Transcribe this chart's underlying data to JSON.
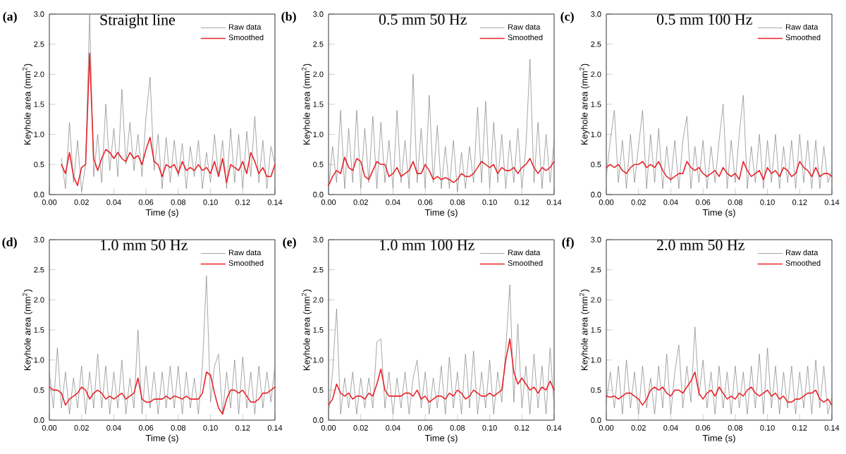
{
  "chart_data": [
    {
      "type": "line",
      "title": "Straight line",
      "annotations": [
        "(a)"
      ],
      "xlabel": "Time (s)",
      "ylabel": "Keyhole area (mm$^{2}$)",
      "legend": "top right",
      "xlim": [
        0,
        0.14
      ],
      "ylim": [
        0,
        3.0
      ],
      "xticks": [
        {
          "value": 0,
          "label": "0.00"
        },
        {
          "value": 0.02,
          "label": "0.02"
        },
        {
          "value": 0.04,
          "label": "0.04"
        },
        {
          "value": 0.06,
          "label": "0.06"
        },
        {
          "value": 0.08,
          "label": "0.08"
        },
        {
          "value": 0.1,
          "label": "0.10"
        },
        {
          "value": 0.12,
          "label": "0.12"
        },
        {
          "value": 0.14,
          "label": "0.14"
        }
      ],
      "yticks": [
        {
          "value": 0,
          "label": "0.0"
        },
        {
          "value": 0.5,
          "label": "0.5"
        },
        {
          "value": 1.0,
          "label": "1.0"
        },
        {
          "value": 1.5,
          "label": "1.5"
        },
        {
          "value": 2.0,
          "label": "2.0"
        },
        {
          "value": 2.5,
          "label": "2.5"
        },
        {
          "value": 3.0,
          "label": "3.0"
        }
      ],
      "x": [
        0.0075,
        0.01,
        0.0125,
        0.015,
        0.0175,
        0.02,
        0.0225,
        0.025,
        0.0275,
        0.03,
        0.0325,
        0.035,
        0.0375,
        0.04,
        0.0425,
        0.045,
        0.0475,
        0.05,
        0.0525,
        0.055,
        0.0575,
        0.06,
        0.0625,
        0.065,
        0.0675,
        0.07,
        0.0725,
        0.075,
        0.0775,
        0.08,
        0.0825,
        0.085,
        0.0875,
        0.09,
        0.0925,
        0.095,
        0.0975,
        0.1,
        0.1025,
        0.105,
        0.1075,
        0.11,
        0.1125,
        0.115,
        0.1175,
        0.12,
        0.1225,
        0.125,
        0.1275,
        0.13,
        0.1325,
        0.135,
        0.1375,
        0.14
      ],
      "series": [
        {
          "name": "Raw data",
          "color": "#808080",
          "values": [
            0.6,
            0.1,
            1.2,
            0.2,
            0.9,
            0.05,
            0.5,
            3.0,
            0.3,
            1.0,
            0.2,
            1.5,
            0.4,
            1.1,
            0.3,
            1.75,
            0.5,
            1.2,
            0.4,
            1.0,
            0.3,
            1.3,
            1.95,
            0.4,
            1.0,
            0.1,
            0.95,
            0.2,
            0.9,
            0.3,
            0.85,
            0.1,
            0.8,
            0.3,
            0.9,
            0.1,
            0.7,
            0.2,
            1.0,
            0.3,
            0.9,
            0.1,
            1.1,
            0.2,
            1.0,
            0.1,
            1.05,
            0.3,
            1.3,
            0.2,
            0.9,
            0.1,
            0.8,
            0.5
          ]
        },
        {
          "name": "Smoothed",
          "color": "#e8242a",
          "values": [
            0.5,
            0.35,
            0.7,
            0.3,
            0.15,
            0.45,
            0.5,
            2.35,
            0.6,
            0.4,
            0.6,
            0.75,
            0.7,
            0.6,
            0.7,
            0.6,
            0.55,
            0.7,
            0.6,
            0.65,
            0.5,
            0.75,
            0.95,
            0.55,
            0.5,
            0.3,
            0.5,
            0.45,
            0.5,
            0.35,
            0.55,
            0.4,
            0.45,
            0.4,
            0.5,
            0.4,
            0.45,
            0.35,
            0.55,
            0.3,
            0.6,
            0.2,
            0.5,
            0.45,
            0.4,
            0.55,
            0.35,
            0.7,
            0.55,
            0.35,
            0.45,
            0.3,
            0.3,
            0.5
          ]
        }
      ]
    },
    {
      "type": "line",
      "title": "0.5 mm 50 Hz",
      "annotations": [
        "(b)"
      ],
      "xlabel": "Time (s)",
      "ylabel": "Keyhole area (mm$^{2}$)",
      "legend": "top right",
      "xlim": [
        0,
        0.14
      ],
      "ylim": [
        0,
        3.0
      ],
      "xticks": [
        {
          "value": 0,
          "label": "0.00"
        },
        {
          "value": 0.02,
          "label": "0.02"
        },
        {
          "value": 0.04,
          "label": "0.04"
        },
        {
          "value": 0.06,
          "label": "0.06"
        },
        {
          "value": 0.08,
          "label": "0.08"
        },
        {
          "value": 0.1,
          "label": "0.10"
        },
        {
          "value": 0.12,
          "label": "0.12"
        },
        {
          "value": 0.14,
          "label": "0.14"
        }
      ],
      "yticks": [
        {
          "value": 0,
          "label": "0.0"
        },
        {
          "value": 0.5,
          "label": "0.5"
        },
        {
          "value": 1.0,
          "label": "1.0"
        },
        {
          "value": 1.5,
          "label": "1.5"
        },
        {
          "value": 2.0,
          "label": "2.0"
        },
        {
          "value": 2.5,
          "label": "2.5"
        },
        {
          "value": 3.0,
          "label": "3.0"
        }
      ],
      "x": [
        0,
        0.0025,
        0.005,
        0.0075,
        0.01,
        0.0125,
        0.015,
        0.0175,
        0.02,
        0.0225,
        0.025,
        0.0275,
        0.03,
        0.0325,
        0.035,
        0.0375,
        0.04,
        0.0425,
        0.045,
        0.0475,
        0.05,
        0.0525,
        0.055,
        0.0575,
        0.06,
        0.0625,
        0.065,
        0.0675,
        0.07,
        0.0725,
        0.075,
        0.0775,
        0.08,
        0.0825,
        0.085,
        0.0875,
        0.09,
        0.0925,
        0.095,
        0.0975,
        0.1,
        0.1025,
        0.105,
        0.1075,
        0.11,
        0.1125,
        0.115,
        0.1175,
        0.12,
        0.1225,
        0.125,
        0.1275,
        0.13,
        0.1325,
        0.135,
        0.1375,
        0.14
      ],
      "series": [
        {
          "name": "Raw data",
          "color": "#808080",
          "values": [
            0.1,
            0.8,
            0.2,
            1.4,
            0.1,
            1.1,
            0.2,
            1.4,
            0.1,
            1.1,
            0.2,
            1.3,
            0.1,
            1.2,
            0.2,
            0.9,
            0.1,
            1.4,
            0.2,
            0.9,
            0.1,
            2.0,
            0.2,
            1.1,
            0.1,
            1.65,
            0.2,
            1.15,
            0.1,
            0.8,
            0.1,
            0.9,
            0.05,
            0.7,
            0.1,
            0.8,
            0.2,
            1.45,
            0.2,
            1.55,
            0.1,
            1.2,
            0.2,
            1.0,
            0.1,
            0.9,
            0.2,
            1.1,
            0.1,
            0.8,
            2.25,
            0.2,
            1.2,
            0.1,
            1.0,
            0.2,
            0.9
          ]
        },
        {
          "name": "Smoothed",
          "color": "#e8242a",
          "values": [
            0.15,
            0.3,
            0.4,
            0.35,
            0.62,
            0.45,
            0.4,
            0.6,
            0.55,
            0.3,
            0.25,
            0.4,
            0.55,
            0.5,
            0.5,
            0.3,
            0.35,
            0.45,
            0.3,
            0.35,
            0.4,
            0.55,
            0.35,
            0.35,
            0.5,
            0.4,
            0.25,
            0.3,
            0.25,
            0.28,
            0.25,
            0.2,
            0.25,
            0.35,
            0.3,
            0.3,
            0.35,
            0.45,
            0.55,
            0.5,
            0.45,
            0.5,
            0.35,
            0.45,
            0.4,
            0.4,
            0.45,
            0.35,
            0.45,
            0.5,
            0.6,
            0.45,
            0.35,
            0.45,
            0.4,
            0.45,
            0.55
          ]
        }
      ]
    },
    {
      "type": "line",
      "title": "0.5 mm 100 Hz",
      "annotations": [
        "(c)"
      ],
      "xlabel": "Time (s)",
      "ylabel": "Keyhole area (mm$^{2}$)",
      "legend": "top right",
      "xlim": [
        0,
        0.14
      ],
      "ylim": [
        0,
        3.0
      ],
      "xticks": [
        {
          "value": 0,
          "label": "0.00"
        },
        {
          "value": 0.02,
          "label": "0.02"
        },
        {
          "value": 0.04,
          "label": "0.04"
        },
        {
          "value": 0.06,
          "label": "0.06"
        },
        {
          "value": 0.08,
          "label": "0.08"
        },
        {
          "value": 0.1,
          "label": "0.10"
        },
        {
          "value": 0.12,
          "label": "0.12"
        },
        {
          "value": 0.14,
          "label": "0.14"
        }
      ],
      "yticks": [
        {
          "value": 0,
          "label": "0.0"
        },
        {
          "value": 0.5,
          "label": "0.5"
        },
        {
          "value": 1.0,
          "label": "1.0"
        },
        {
          "value": 1.5,
          "label": "1.5"
        },
        {
          "value": 2.0,
          "label": "2.0"
        },
        {
          "value": 2.5,
          "label": "2.5"
        },
        {
          "value": 3.0,
          "label": "3.0"
        }
      ],
      "x": [
        0,
        0.0025,
        0.005,
        0.0075,
        0.01,
        0.0125,
        0.015,
        0.0175,
        0.02,
        0.0225,
        0.025,
        0.0275,
        0.03,
        0.0325,
        0.035,
        0.0375,
        0.04,
        0.0425,
        0.045,
        0.0475,
        0.05,
        0.0525,
        0.055,
        0.0575,
        0.06,
        0.0625,
        0.065,
        0.0675,
        0.07,
        0.0725,
        0.075,
        0.0775,
        0.08,
        0.0825,
        0.085,
        0.0875,
        0.09,
        0.0925,
        0.095,
        0.0975,
        0.1,
        0.1025,
        0.105,
        0.1075,
        0.11,
        0.1125,
        0.115,
        0.1175,
        0.12,
        0.1225,
        0.125,
        0.1275,
        0.13,
        0.1325,
        0.135,
        0.1375,
        0.14
      ],
      "series": [
        {
          "name": "Raw data",
          "color": "#808080",
          "values": [
            0.3,
            0.9,
            1.4,
            0.2,
            0.9,
            0.1,
            1.0,
            0.2,
            0.8,
            1.4,
            0.1,
            1.0,
            0.2,
            1.1,
            0.1,
            0.8,
            0.2,
            0.9,
            0.1,
            0.9,
            1.3,
            0.1,
            0.8,
            0.2,
            0.9,
            0.1,
            0.8,
            0.2,
            0.9,
            1.5,
            0.1,
            0.9,
            0.2,
            1.0,
            1.65,
            0.1,
            0.8,
            0.2,
            1.0,
            0.1,
            0.9,
            0.2,
            1.0,
            0.1,
            0.8,
            0.2,
            0.9,
            0.1,
            1.0,
            0.2,
            0.9,
            0.1,
            0.9,
            0.1,
            0.8,
            0.2,
            0.4
          ]
        },
        {
          "name": "Smoothed",
          "color": "#e8242a",
          "values": [
            0.45,
            0.5,
            0.45,
            0.5,
            0.4,
            0.35,
            0.45,
            0.5,
            0.5,
            0.55,
            0.45,
            0.5,
            0.45,
            0.55,
            0.4,
            0.3,
            0.25,
            0.3,
            0.35,
            0.35,
            0.55,
            0.45,
            0.4,
            0.45,
            0.35,
            0.3,
            0.35,
            0.4,
            0.3,
            0.45,
            0.35,
            0.3,
            0.35,
            0.25,
            0.55,
            0.4,
            0.3,
            0.35,
            0.4,
            0.25,
            0.45,
            0.35,
            0.4,
            0.3,
            0.45,
            0.4,
            0.3,
            0.35,
            0.55,
            0.45,
            0.4,
            0.3,
            0.45,
            0.3,
            0.35,
            0.35,
            0.3
          ]
        }
      ]
    },
    {
      "type": "line",
      "title": "1.0 mm 50 Hz",
      "annotations": [
        "(d)"
      ],
      "xlabel": "Time (s)",
      "ylabel": "Keyhole area (mm$^{2}$)",
      "legend": "top right",
      "xlim": [
        0,
        0.14
      ],
      "ylim": [
        0,
        3.0
      ],
      "xticks": [
        {
          "value": 0,
          "label": "0.00"
        },
        {
          "value": 0.02,
          "label": "0.02"
        },
        {
          "value": 0.04,
          "label": "0.04"
        },
        {
          "value": 0.06,
          "label": "0.06"
        },
        {
          "value": 0.08,
          "label": "0.08"
        },
        {
          "value": 0.1,
          "label": "0.10"
        },
        {
          "value": 0.12,
          "label": "0.12"
        },
        {
          "value": 0.14,
          "label": "0.14"
        }
      ],
      "yticks": [
        {
          "value": 0,
          "label": "0.0"
        },
        {
          "value": 0.5,
          "label": "0.5"
        },
        {
          "value": 1.0,
          "label": "1.0"
        },
        {
          "value": 1.5,
          "label": "1.5"
        },
        {
          "value": 2.0,
          "label": "2.0"
        },
        {
          "value": 2.5,
          "label": "2.5"
        },
        {
          "value": 3.0,
          "label": "3.0"
        }
      ],
      "x": [
        0,
        0.0025,
        0.005,
        0.0075,
        0.01,
        0.0125,
        0.015,
        0.0175,
        0.02,
        0.0225,
        0.025,
        0.0275,
        0.03,
        0.0325,
        0.035,
        0.0375,
        0.04,
        0.0425,
        0.045,
        0.0475,
        0.05,
        0.0525,
        0.055,
        0.0575,
        0.06,
        0.0625,
        0.065,
        0.0675,
        0.07,
        0.0725,
        0.075,
        0.0775,
        0.08,
        0.0825,
        0.085,
        0.0875,
        0.09,
        0.0925,
        0.095,
        0.0975,
        0.1,
        0.1025,
        0.105,
        0.1075,
        0.11,
        0.1125,
        0.115,
        0.1175,
        0.12,
        0.1225,
        0.125,
        0.1275,
        0.13,
        0.1325,
        0.135,
        0.1375,
        0.14
      ],
      "series": [
        {
          "name": "Raw data",
          "color": "#808080",
          "values": [
            0.8,
            0.2,
            1.2,
            0.2,
            0.8,
            0.1,
            0.7,
            0.2,
            0.9,
            0.1,
            0.8,
            0.2,
            1.1,
            0.2,
            0.9,
            0.1,
            0.8,
            0.2,
            1.0,
            0.1,
            0.7,
            0.2,
            1.5,
            0.1,
            0.9,
            0.2,
            0.8,
            0.1,
            0.8,
            0.2,
            0.9,
            0.2,
            0.9,
            0.1,
            0.8,
            0.2,
            0.7,
            0.1,
            0.9,
            2.4,
            0.3,
            0.9,
            1.1,
            0.1,
            0.8,
            0.2,
            1.0,
            0.1,
            1.05,
            0.2,
            0.8,
            0.1,
            0.9,
            0.2,
            0.8,
            0.3,
            0.9
          ]
        },
        {
          "name": "Smoothed",
          "color": "#e8242a",
          "values": [
            0.55,
            0.5,
            0.5,
            0.45,
            0.25,
            0.35,
            0.4,
            0.45,
            0.55,
            0.5,
            0.35,
            0.45,
            0.5,
            0.45,
            0.35,
            0.4,
            0.35,
            0.4,
            0.45,
            0.35,
            0.4,
            0.45,
            0.7,
            0.35,
            0.3,
            0.3,
            0.35,
            0.35,
            0.35,
            0.4,
            0.35,
            0.4,
            0.38,
            0.35,
            0.4,
            0.35,
            0.35,
            0.35,
            0.45,
            0.8,
            0.75,
            0.45,
            0.2,
            0.1,
            0.35,
            0.5,
            0.5,
            0.45,
            0.5,
            0.4,
            0.3,
            0.3,
            0.35,
            0.45,
            0.45,
            0.5,
            0.55
          ]
        }
      ]
    },
    {
      "type": "line",
      "title": "1.0 mm 100 Hz",
      "annotations": [
        "(e)"
      ],
      "xlabel": "Time (s)",
      "ylabel": "Keyhole area (mm$^{2}$)",
      "legend": "top right",
      "xlim": [
        0,
        0.14
      ],
      "ylim": [
        0,
        3.0
      ],
      "xticks": [
        {
          "value": 0,
          "label": "0.00"
        },
        {
          "value": 0.02,
          "label": "0.02"
        },
        {
          "value": 0.04,
          "label": "0.04"
        },
        {
          "value": 0.06,
          "label": "0.06"
        },
        {
          "value": 0.08,
          "label": "0.08"
        },
        {
          "value": 0.1,
          "label": "0.10"
        },
        {
          "value": 0.12,
          "label": "0.12"
        },
        {
          "value": 0.14,
          "label": "0.14"
        }
      ],
      "yticks": [
        {
          "value": 0,
          "label": "0.0"
        },
        {
          "value": 0.5,
          "label": "0.5"
        },
        {
          "value": 1.0,
          "label": "1.0"
        },
        {
          "value": 1.5,
          "label": "1.5"
        },
        {
          "value": 2.0,
          "label": "2.0"
        },
        {
          "value": 2.5,
          "label": "2.5"
        },
        {
          "value": 3.0,
          "label": "3.0"
        }
      ],
      "x": [
        0,
        0.0025,
        0.005,
        0.0075,
        0.01,
        0.0125,
        0.015,
        0.0175,
        0.02,
        0.0225,
        0.025,
        0.0275,
        0.03,
        0.0325,
        0.035,
        0.0375,
        0.04,
        0.0425,
        0.045,
        0.0475,
        0.05,
        0.0525,
        0.055,
        0.0575,
        0.06,
        0.0625,
        0.065,
        0.0675,
        0.07,
        0.0725,
        0.075,
        0.0775,
        0.08,
        0.0825,
        0.085,
        0.0875,
        0.09,
        0.0925,
        0.095,
        0.0975,
        0.1,
        0.1025,
        0.105,
        0.1075,
        0.11,
        0.1125,
        0.115,
        0.1175,
        0.12,
        0.1225,
        0.125,
        0.1275,
        0.13,
        0.1325,
        0.135,
        0.1375,
        0.14
      ],
      "series": [
        {
          "name": "Raw data",
          "color": "#808080",
          "values": [
            0.1,
            0.8,
            1.85,
            0.1,
            0.7,
            0.2,
            0.8,
            0.1,
            0.7,
            0.2,
            0.7,
            0.2,
            1.3,
            1.35,
            0.2,
            0.8,
            0.1,
            0.7,
            0.2,
            0.8,
            0.1,
            0.7,
            1.0,
            0.2,
            0.8,
            0.1,
            0.7,
            0.2,
            0.9,
            0.1,
            1.05,
            0.2,
            0.8,
            0.1,
            1.1,
            0.2,
            1.15,
            0.1,
            0.8,
            0.2,
            1.0,
            0.1,
            0.8,
            0.3,
            1.2,
            2.25,
            0.3,
            1.6,
            0.2,
            0.9,
            0.1,
            1.1,
            0.2,
            0.9,
            0.1,
            1.2,
            0.2
          ]
        },
        {
          "name": "Smoothed",
          "color": "#e8242a",
          "values": [
            0.25,
            0.35,
            0.6,
            0.45,
            0.4,
            0.45,
            0.35,
            0.4,
            0.4,
            0.35,
            0.45,
            0.4,
            0.6,
            0.85,
            0.5,
            0.4,
            0.4,
            0.4,
            0.4,
            0.45,
            0.45,
            0.4,
            0.5,
            0.35,
            0.4,
            0.3,
            0.35,
            0.4,
            0.4,
            0.35,
            0.45,
            0.4,
            0.5,
            0.45,
            0.35,
            0.4,
            0.5,
            0.45,
            0.4,
            0.4,
            0.45,
            0.4,
            0.45,
            0.5,
            1.0,
            1.35,
            0.8,
            0.6,
            0.7,
            0.6,
            0.5,
            0.55,
            0.45,
            0.55,
            0.5,
            0.65,
            0.5
          ]
        }
      ]
    },
    {
      "type": "line",
      "title": "2.0 mm 50 Hz",
      "annotations": [
        "(f)"
      ],
      "xlabel": "Time (s)",
      "ylabel": "Keyhole area (mm$^{2}$)",
      "legend": "top right",
      "xlim": [
        0,
        0.14
      ],
      "ylim": [
        0,
        3.0
      ],
      "xticks": [
        {
          "value": 0,
          "label": "0.00"
        },
        {
          "value": 0.02,
          "label": "0.02"
        },
        {
          "value": 0.04,
          "label": "0.04"
        },
        {
          "value": 0.06,
          "label": "0.06"
        },
        {
          "value": 0.08,
          "label": "0.08"
        },
        {
          "value": 0.1,
          "label": "0.10"
        },
        {
          "value": 0.12,
          "label": "0.12"
        },
        {
          "value": 0.14,
          "label": "0.14"
        }
      ],
      "yticks": [
        {
          "value": 0,
          "label": "0.0"
        },
        {
          "value": 0.5,
          "label": "0.5"
        },
        {
          "value": 1.0,
          "label": "1.0"
        },
        {
          "value": 1.5,
          "label": "1.5"
        },
        {
          "value": 2.0,
          "label": "2.0"
        },
        {
          "value": 2.5,
          "label": "2.5"
        },
        {
          "value": 3.0,
          "label": "3.0"
        }
      ],
      "x": [
        0,
        0.0025,
        0.005,
        0.0075,
        0.01,
        0.0125,
        0.015,
        0.0175,
        0.02,
        0.0225,
        0.025,
        0.0275,
        0.03,
        0.0325,
        0.035,
        0.0375,
        0.04,
        0.0425,
        0.045,
        0.0475,
        0.05,
        0.0525,
        0.055,
        0.0575,
        0.06,
        0.0625,
        0.065,
        0.0675,
        0.07,
        0.0725,
        0.075,
        0.0775,
        0.08,
        0.0825,
        0.085,
        0.0875,
        0.09,
        0.0925,
        0.095,
        0.0975,
        0.1,
        0.1025,
        0.105,
        0.1075,
        0.11,
        0.1125,
        0.115,
        0.1175,
        0.12,
        0.1225,
        0.125,
        0.1275,
        0.13,
        0.1325,
        0.135,
        0.1375,
        0.14
      ],
      "series": [
        {
          "name": "Raw data",
          "color": "#808080",
          "values": [
            0.3,
            0.8,
            0.2,
            0.9,
            0.1,
            1.0,
            0.2,
            0.8,
            0.1,
            0.9,
            0.2,
            0.7,
            0.1,
            0.9,
            0.2,
            1.1,
            0.1,
            0.8,
            1.25,
            0.2,
            0.9,
            0.3,
            1.55,
            0.4,
            1.0,
            0.2,
            0.8,
            0.1,
            0.9,
            0.2,
            0.8,
            0.1,
            0.9,
            0.2,
            0.8,
            0.1,
            0.9,
            0.2,
            1.1,
            0.1,
            1.2,
            0.2,
            0.9,
            0.1,
            0.8,
            0.2,
            0.9,
            0.1,
            0.8,
            0.2,
            0.9,
            0.1,
            1.0,
            0.2,
            0.9,
            0.1,
            0.4
          ]
        },
        {
          "name": "Smoothed",
          "color": "#e8242a",
          "values": [
            0.4,
            0.38,
            0.4,
            0.35,
            0.4,
            0.45,
            0.45,
            0.4,
            0.35,
            0.25,
            0.35,
            0.5,
            0.55,
            0.5,
            0.55,
            0.45,
            0.4,
            0.5,
            0.5,
            0.45,
            0.55,
            0.65,
            0.8,
            0.45,
            0.35,
            0.45,
            0.5,
            0.4,
            0.55,
            0.45,
            0.35,
            0.4,
            0.35,
            0.45,
            0.4,
            0.5,
            0.55,
            0.45,
            0.4,
            0.45,
            0.5,
            0.4,
            0.45,
            0.35,
            0.4,
            0.3,
            0.3,
            0.35,
            0.35,
            0.4,
            0.45,
            0.45,
            0.5,
            0.35,
            0.3,
            0.35,
            0.25
          ]
        }
      ]
    }
  ]
}
